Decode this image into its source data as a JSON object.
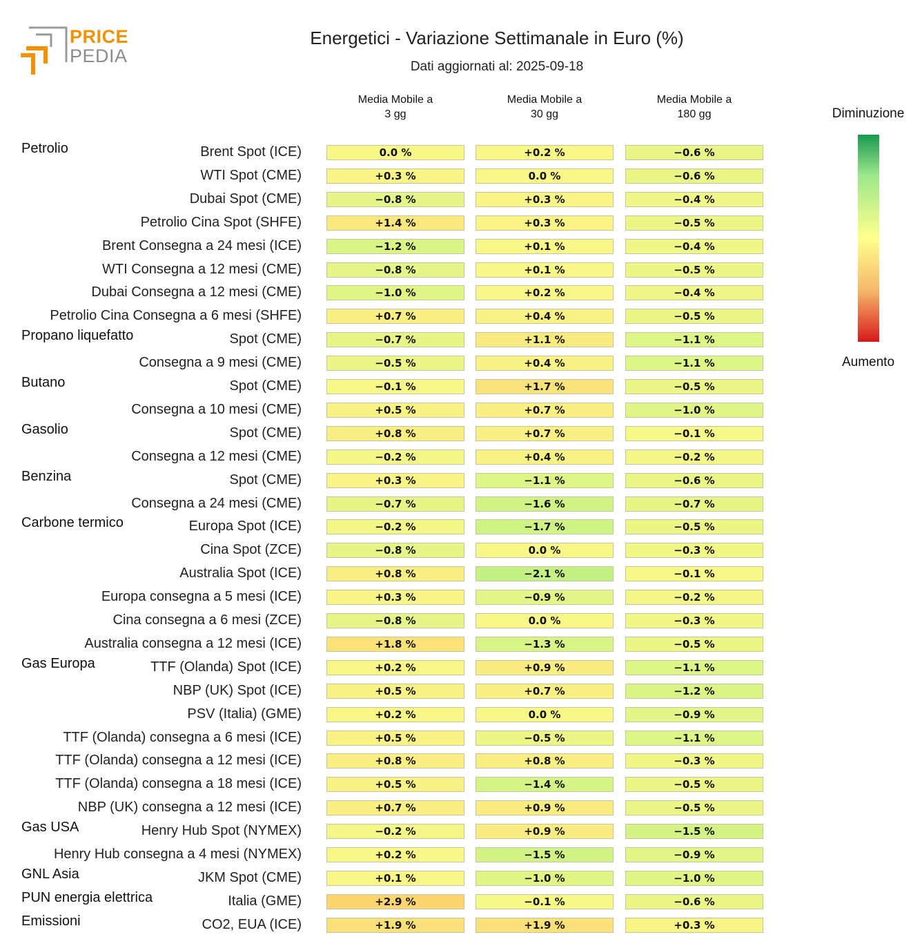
{
  "logo": {
    "line1": "PRICE",
    "line2": "PEDIA"
  },
  "title": "Energetici - Variazione Settimanale in Euro (%)",
  "subtitle": "Dati aggiornati al: 2025-09-18",
  "legend": {
    "top_label": "Diminuzione",
    "bottom_label": "Aumento",
    "top_color": "#1a9850",
    "mid_color": "#ffff8c",
    "bottom_color": "#d7191c"
  },
  "chart_data": {
    "type": "table",
    "title": "Energetici - Variazione Settimanale in Euro (%)",
    "columns": [
      "Media Mobile a\n3 gg",
      "Media Mobile a\n30 gg",
      "Media Mobile a\n180 gg"
    ],
    "unit": "%",
    "rows": [
      {
        "group": "Petrolio",
        "label": "Brent Spot (ICE)",
        "values": [
          0.0,
          0.2,
          -0.6
        ]
      },
      {
        "group": "",
        "label": "WTI Spot (CME)",
        "values": [
          0.3,
          0.0,
          -0.6
        ]
      },
      {
        "group": "",
        "label": "Dubai Spot (CME)",
        "values": [
          -0.8,
          0.3,
          -0.4
        ]
      },
      {
        "group": "",
        "label": "Petrolio Cina Spot (SHFE)",
        "values": [
          1.4,
          0.3,
          -0.5
        ]
      },
      {
        "group": "",
        "label": "Brent Consegna a 24 mesi (ICE)",
        "values": [
          -1.2,
          0.1,
          -0.4
        ]
      },
      {
        "group": "",
        "label": "WTI Consegna a 12 mesi (CME)",
        "values": [
          -0.8,
          0.1,
          -0.5
        ]
      },
      {
        "group": "",
        "label": "Dubai Consegna a 12 mesi (CME)",
        "values": [
          -1.0,
          0.2,
          -0.4
        ]
      },
      {
        "group": "",
        "label": "Petrolio Cina Consegna a 6 mesi (SHFE)",
        "values": [
          0.7,
          0.4,
          -0.5
        ]
      },
      {
        "group": "Propano liquefatto",
        "label": "Spot (CME)",
        "values": [
          -0.7,
          1.1,
          -1.1
        ]
      },
      {
        "group": "",
        "label": "Consegna a 9 mesi (CME)",
        "values": [
          -0.5,
          0.4,
          -1.1
        ]
      },
      {
        "group": "Butano",
        "label": "Spot (CME)",
        "values": [
          -0.1,
          1.7,
          -0.5
        ]
      },
      {
        "group": "",
        "label": "Consegna a 10 mesi (CME)",
        "values": [
          0.5,
          0.7,
          -1.0
        ]
      },
      {
        "group": "Gasolio",
        "label": "Spot (CME)",
        "values": [
          0.8,
          0.7,
          -0.1
        ]
      },
      {
        "group": "",
        "label": "Consegna a 12 mesi (CME)",
        "values": [
          -0.2,
          0.4,
          -0.2
        ]
      },
      {
        "group": "Benzina",
        "label": "Spot (CME)",
        "values": [
          0.3,
          -1.1,
          -0.6
        ]
      },
      {
        "group": "",
        "label": "Consegna a 24 mesi (CME)",
        "values": [
          -0.7,
          -1.6,
          -0.7
        ]
      },
      {
        "group": "Carbone termico",
        "label": "Europa Spot (ICE)",
        "values": [
          -0.2,
          -1.7,
          -0.5
        ]
      },
      {
        "group": "",
        "label": "Cina Spot (ZCE)",
        "values": [
          -0.8,
          0.0,
          -0.3
        ]
      },
      {
        "group": "",
        "label": "Australia Spot (ICE)",
        "values": [
          0.8,
          -2.1,
          -0.1
        ]
      },
      {
        "group": "",
        "label": "Europa consegna a 5 mesi (ICE)",
        "values": [
          0.3,
          -0.9,
          -0.2
        ]
      },
      {
        "group": "",
        "label": "Cina consegna a 6 mesi (ZCE)",
        "values": [
          -0.8,
          0.0,
          -0.3
        ]
      },
      {
        "group": "",
        "label": "Australia consegna a 12 mesi (ICE)",
        "values": [
          1.8,
          -1.3,
          -0.5
        ]
      },
      {
        "group": "Gas Europa",
        "label": "TTF (Olanda) Spot (ICE)",
        "values": [
          0.2,
          0.9,
          -1.1
        ]
      },
      {
        "group": "",
        "label": "NBP (UK) Spot (ICE)",
        "values": [
          0.5,
          0.7,
          -1.2
        ]
      },
      {
        "group": "",
        "label": "PSV (Italia) (GME)",
        "values": [
          0.2,
          0.0,
          -0.9
        ]
      },
      {
        "group": "",
        "label": "TTF (Olanda) consegna a 6 mesi (ICE)",
        "values": [
          0.5,
          -0.5,
          -1.1
        ]
      },
      {
        "group": "",
        "label": "TTF (Olanda) consegna a 12 mesi (ICE)",
        "values": [
          0.8,
          0.8,
          -0.3
        ]
      },
      {
        "group": "",
        "label": "TTF (Olanda) consegna a 18 mesi (ICE)",
        "values": [
          0.5,
          -1.4,
          -0.5
        ]
      },
      {
        "group": "",
        "label": "NBP (UK) consegna a 12 mesi (ICE)",
        "values": [
          0.7,
          0.9,
          -0.5
        ]
      },
      {
        "group": "Gas USA",
        "label": "Henry Hub Spot (NYMEX)",
        "values": [
          -0.2,
          0.9,
          -1.5
        ]
      },
      {
        "group": "",
        "label": "Henry Hub consegna a 4 mesi (NYMEX)",
        "values": [
          0.2,
          -1.5,
          -0.9
        ]
      },
      {
        "group": "GNL Asia",
        "label": "JKM Spot (CME)",
        "values": [
          0.1,
          -1.0,
          -1.0
        ]
      },
      {
        "group": "PUN energia elettrica",
        "label": "Italia (GME)",
        "values": [
          2.9,
          -0.1,
          -0.6
        ]
      },
      {
        "group": "Emissioni",
        "label": "CO2, EUA (ICE)",
        "values": [
          1.9,
          1.9,
          0.3
        ]
      }
    ]
  }
}
